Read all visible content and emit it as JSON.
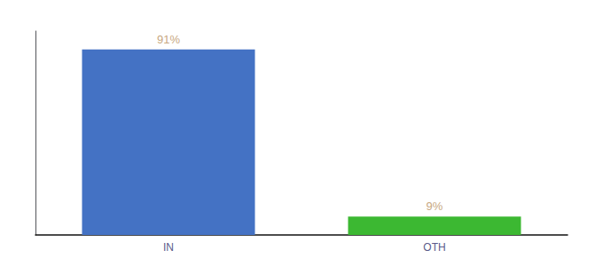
{
  "chart_data": {
    "type": "bar",
    "categories": [
      "IN",
      "OTH"
    ],
    "values": [
      91,
      9
    ],
    "value_labels": [
      "91%",
      "9%"
    ],
    "colors": [
      "#4472c4",
      "#3cb832"
    ],
    "ylim": [
      0,
      100
    ],
    "grid": false,
    "data_labels": true,
    "tick_labels": "x"
  }
}
